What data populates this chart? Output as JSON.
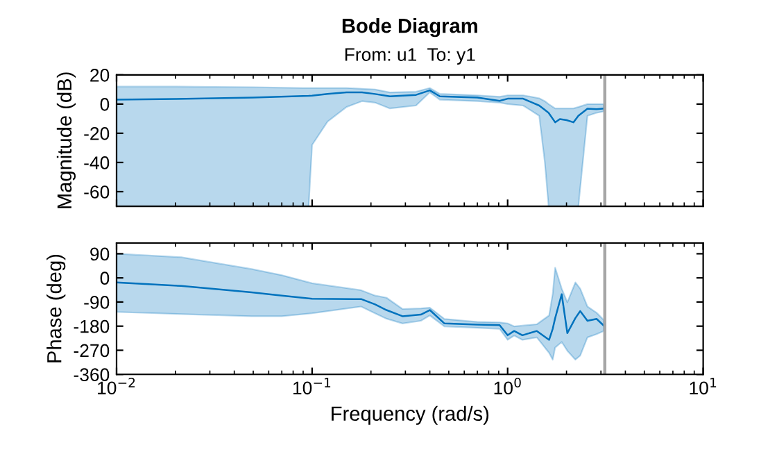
{
  "chart_data": [
    {
      "type": "line",
      "title": "Bode Diagram",
      "subtitle": "From: u1  To: y1",
      "ylabel": "Magnitude (dB)",
      "log": "x",
      "tick_labels": "y",
      "grid": false,
      "xlim": [
        0.01,
        10
      ],
      "xticks": [
        {
          "value": 0.01,
          "label": null
        },
        {
          "value": 0.1,
          "label": null
        },
        {
          "value": 1,
          "label": null
        },
        {
          "value": 10,
          "label": null
        }
      ],
      "ylim": [
        -70,
        20
      ],
      "yticks": [
        -60,
        -40,
        -20,
        0,
        20
      ],
      "ref_lines": [
        {
          "axis": "x",
          "value": 3.14,
          "color": "#a6a6a6"
        }
      ],
      "series": [
        {
          "color": "#0072bd",
          "x": [
            0.01,
            0.02,
            0.05,
            0.09,
            0.096,
            0.1,
            0.12,
            0.15,
            0.18,
            0.21,
            0.25,
            0.34,
            0.4,
            0.45,
            0.7,
            0.91,
            1.0,
            1.2,
            1.45,
            1.55,
            1.62,
            1.75,
            1.85,
            2.0,
            2.17,
            2.3,
            2.56,
            2.85,
            3.1
          ],
          "values": [
            3,
            3.5,
            4.5,
            5.5,
            5.6,
            5.8,
            7,
            8,
            8,
            6.9,
            5.3,
            6.3,
            9.4,
            5.3,
            4.5,
            2.2,
            3.7,
            3.7,
            -1,
            -4,
            -6,
            -12.5,
            -10.3,
            -11,
            -12.5,
            -8,
            -3.1,
            -3.5,
            -3.1
          ],
          "upper": [
            12,
            12,
            11.5,
            11,
            11,
            11,
            11,
            11,
            10.5,
            10,
            8,
            8.5,
            11,
            7,
            6,
            5,
            6,
            6,
            4,
            2,
            0,
            -3,
            -3,
            -3,
            -3,
            -2,
            0,
            0,
            0
          ],
          "lower": [
            -70,
            -70,
            -70,
            -70,
            -70,
            -28,
            -12,
            -2,
            2,
            1,
            -3,
            -1,
            8,
            3,
            2,
            1,
            0,
            -1,
            -8,
            -40,
            -70,
            -70,
            -70,
            -70,
            -70,
            -70,
            -8,
            -6,
            -5
          ]
        }
      ]
    },
    {
      "type": "line",
      "xlabel": "Frequency (rad/s)",
      "ylabel": "Phase (deg)",
      "log": "x",
      "grid": false,
      "xlim": [
        0.01,
        10
      ],
      "xticks": [
        {
          "value": 0.01,
          "label": "10$^{−2}$"
        },
        {
          "value": 0.1,
          "label": "10$^{−1}$"
        },
        {
          "value": 1,
          "label": "10$^{0}$"
        },
        {
          "value": 10,
          "label": "10$^{1}$"
        }
      ],
      "ylim": [
        -360,
        130
      ],
      "yticks": [
        -360,
        -270,
        -180,
        -90,
        0,
        90
      ],
      "ref_lines": [
        {
          "axis": "x",
          "value": 3.14,
          "color": "#a6a6a6"
        }
      ],
      "series": [
        {
          "color": "#0072bd",
          "x": [
            0.01,
            0.0214,
            0.049,
            0.07,
            0.1,
            0.178,
            0.21,
            0.24,
            0.29,
            0.36,
            0.4,
            0.475,
            0.7,
            0.91,
            1.0,
            1.08,
            1.19,
            1.41,
            1.63,
            1.7,
            1.75,
            1.89,
            2.02,
            2.22,
            2.35,
            2.56,
            2.85,
            3.1
          ],
          "values": [
            -17,
            -30,
            -54,
            -66,
            -78,
            -79,
            -99,
            -120,
            -143,
            -137,
            -120,
            -170,
            -174,
            -176,
            -214,
            -198,
            -214,
            -198,
            -231,
            -190,
            -150,
            -61,
            -206,
            -150,
            -124,
            -160,
            -153,
            -178
          ],
          "upper": [
            90,
            77,
            33,
            10,
            -20,
            -46,
            -66,
            -74,
            -116,
            -114,
            -111,
            -153,
            -164,
            -166,
            -170,
            -181,
            -178,
            -173,
            -140,
            -60,
            38,
            -40,
            -91,
            -17,
            -40,
            -107,
            -130,
            -157
          ],
          "lower": [
            -127,
            -135,
            -143,
            -143,
            -132,
            -107,
            -132,
            -152,
            -170,
            -160,
            -140,
            -181,
            -186,
            -190,
            -231,
            -215,
            -231,
            -222,
            -280,
            -305,
            -260,
            -239,
            -272,
            -305,
            -290,
            -222,
            -210,
            -198
          ]
        }
      ]
    }
  ]
}
